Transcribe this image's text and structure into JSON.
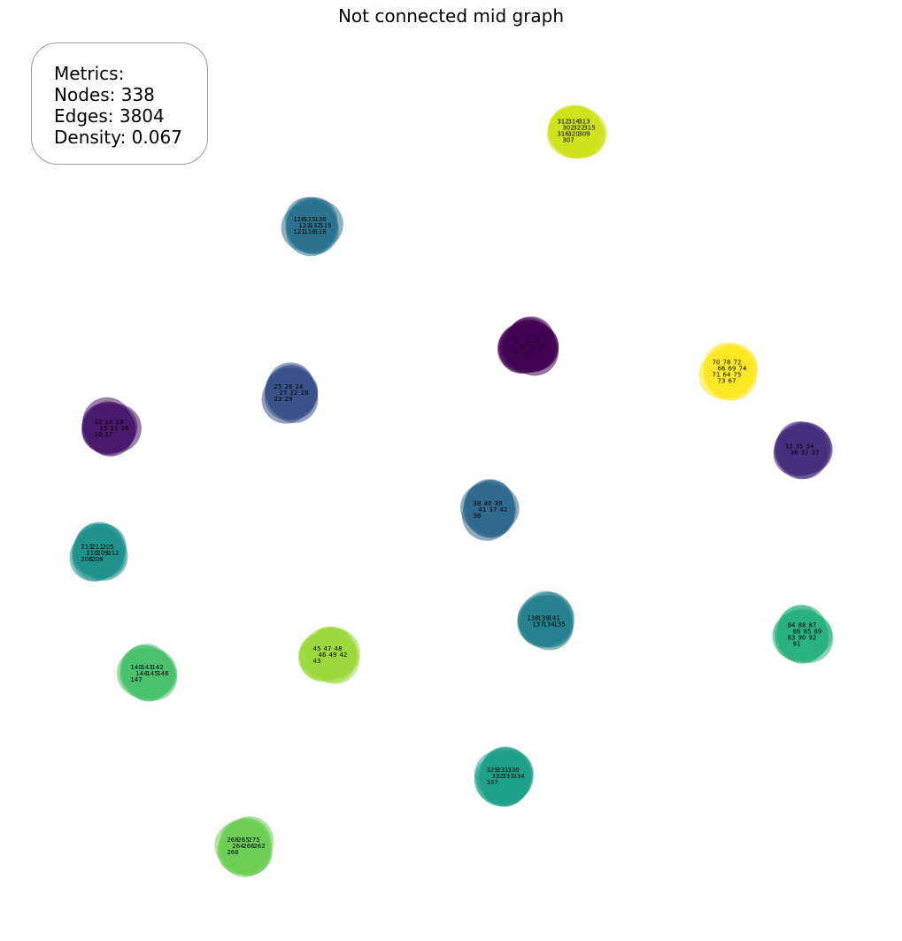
{
  "title": "Not connected mid graph",
  "metrics": {
    "heading": "Metrics:",
    "nodes_line": "Nodes: 338",
    "edges_line": "Edges: 3804",
    "density_line": "Density: 0.067"
  },
  "clusters": [
    {
      "name": "cluster-1",
      "color": "#d0e11c",
      "labels": [
        "312",
        "314",
        "313",
        "302",
        "322",
        "315",
        "316",
        "320",
        "309",
        "307"
      ]
    },
    {
      "name": "cluster-2",
      "color": "#2c728e",
      "labels": [
        "128",
        "125",
        "130",
        "123",
        "132",
        "119",
        "121",
        "116",
        "118"
      ]
    },
    {
      "name": "cluster-3",
      "color": "#440154",
      "labels": [
        "1",
        "2",
        "3",
        "4",
        "5",
        "6",
        "7",
        "8"
      ]
    },
    {
      "name": "cluster-4",
      "color": "#fde725",
      "labels": [
        "70",
        "78",
        "72",
        "66",
        "69",
        "74",
        "71",
        "64",
        "75",
        "73",
        "67"
      ]
    },
    {
      "name": "cluster-5",
      "color": "#3b528b",
      "labels": [
        "25",
        "26",
        "24",
        "27",
        "22",
        "28",
        "23",
        "29"
      ]
    },
    {
      "name": "cluster-6",
      "color": "#481a6c",
      "labels": [
        "12",
        "14",
        "13",
        "15",
        "11",
        "16",
        "10",
        "17"
      ]
    },
    {
      "name": "cluster-7",
      "color": "#472f7d",
      "labels": [
        "33",
        "35",
        "34",
        "36",
        "32",
        "37"
      ]
    },
    {
      "name": "cluster-8",
      "color": "#31688e",
      "labels": [
        "38",
        "40",
        "39",
        "41",
        "37",
        "42",
        "36"
      ]
    },
    {
      "name": "cluster-9",
      "color": "#21918c",
      "labels": [
        "213",
        "211",
        "205",
        "210",
        "209",
        "212",
        "206",
        "208"
      ]
    },
    {
      "name": "cluster-10",
      "color": "#26828e",
      "labels": [
        "138",
        "139",
        "141",
        "137",
        "134",
        "135"
      ]
    },
    {
      "name": "cluster-11",
      "color": "#2ab07f",
      "labels": [
        "84",
        "88",
        "87",
        "86",
        "85",
        "89",
        "83",
        "90",
        "92",
        "91"
      ]
    },
    {
      "name": "cluster-12",
      "color": "#4ac16d",
      "labels": [
        "140",
        "143",
        "142",
        "144",
        "145",
        "146",
        "147"
      ]
    },
    {
      "name": "cluster-13",
      "color": "#9bd93c",
      "labels": [
        "45",
        "47",
        "48",
        "46",
        "49",
        "42",
        "43"
      ]
    },
    {
      "name": "cluster-14",
      "color": "#1fa088",
      "labels": [
        "329",
        "331",
        "330",
        "332",
        "333",
        "334",
        "337"
      ]
    },
    {
      "name": "cluster-15",
      "color": "#6ece58",
      "labels": [
        "268",
        "265",
        "275",
        "264",
        "266",
        "262",
        "268"
      ]
    }
  ]
}
